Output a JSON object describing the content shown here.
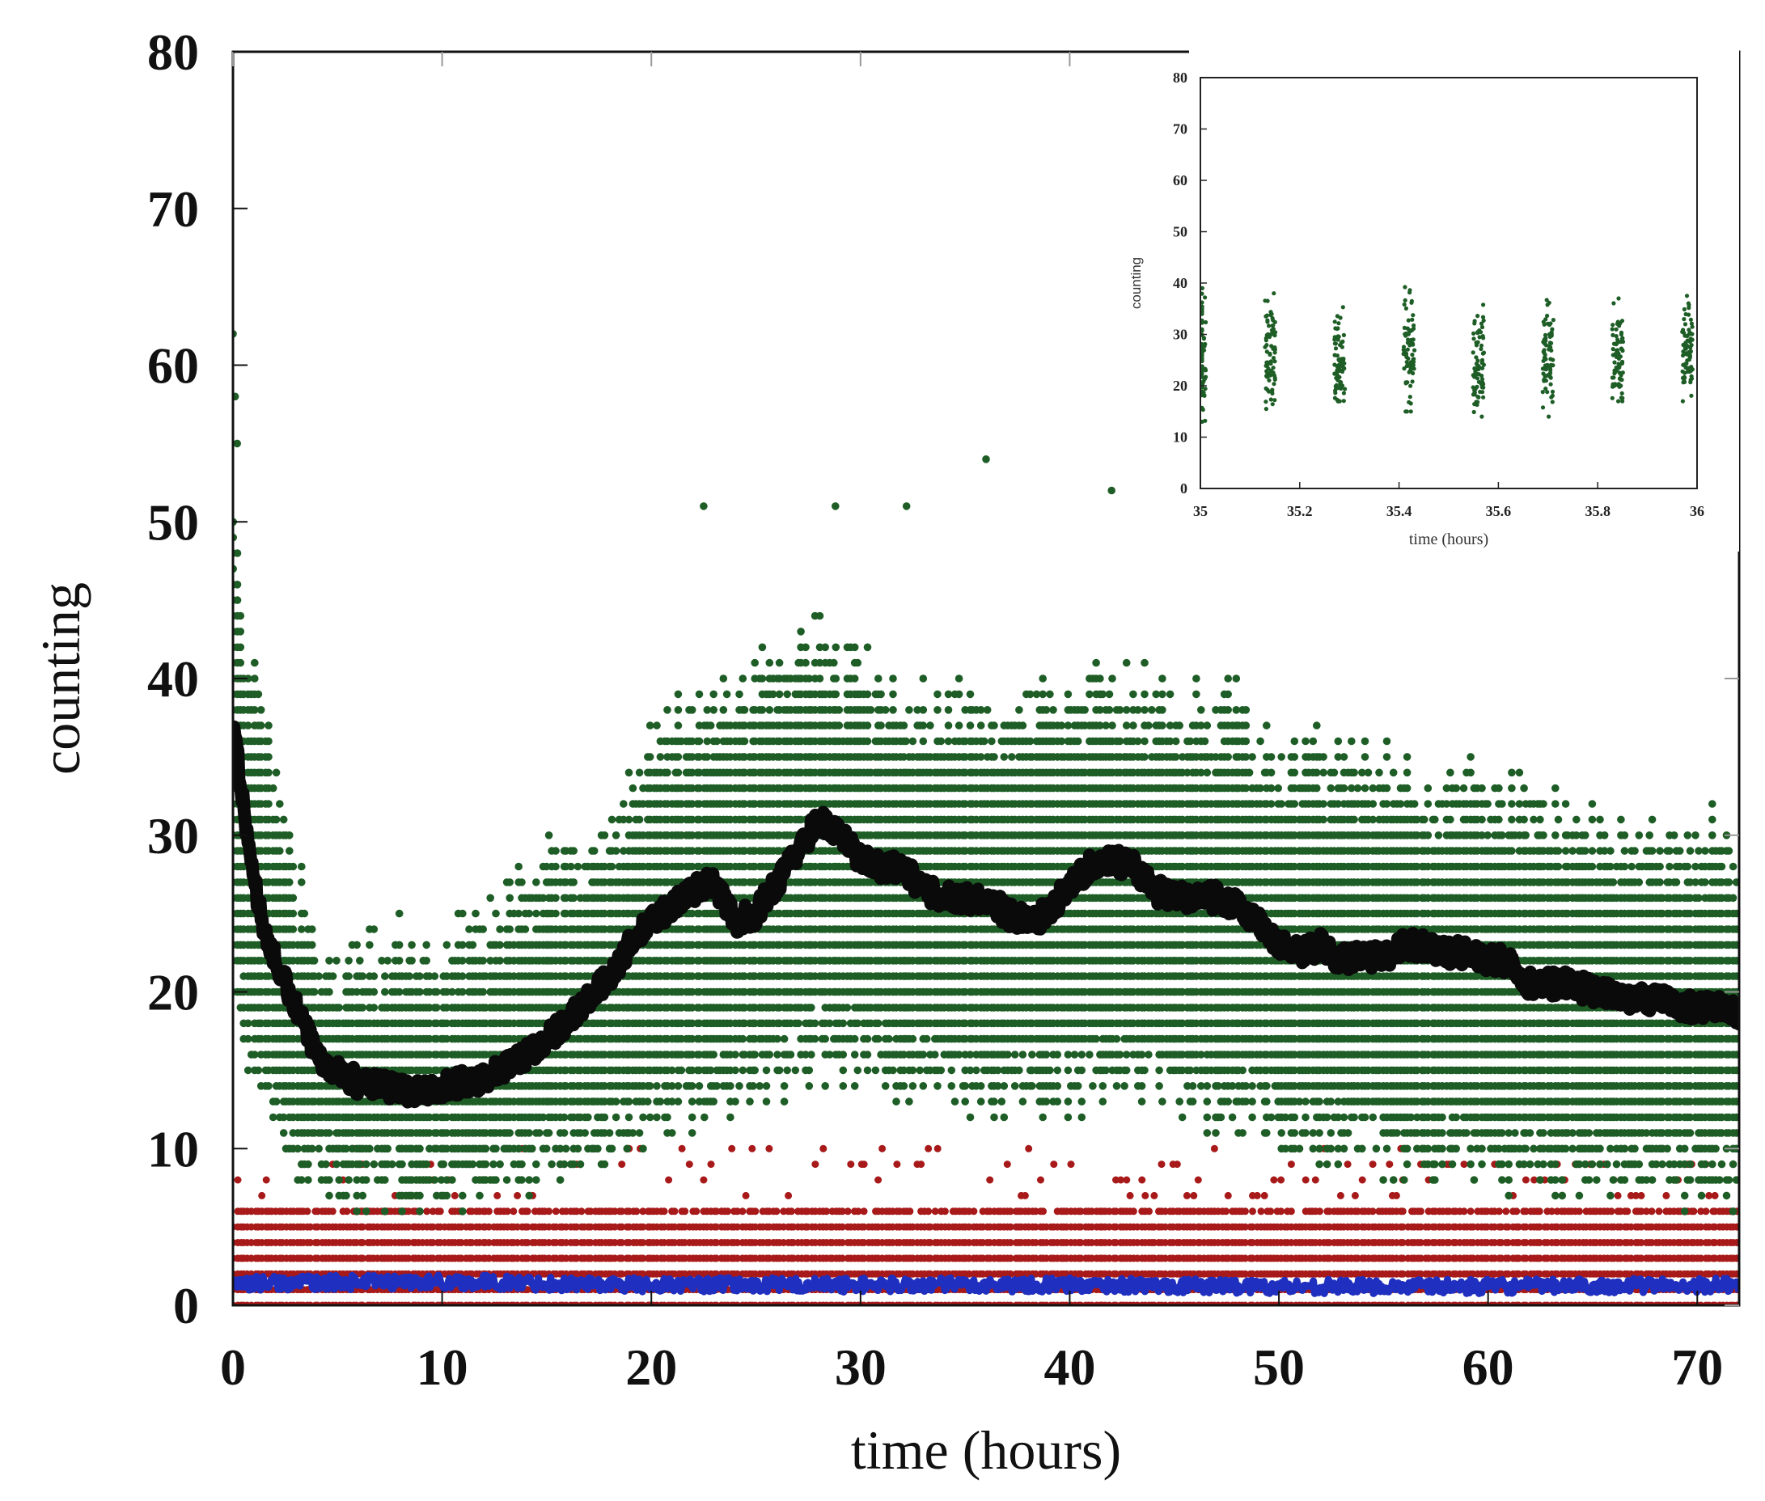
{
  "chart_data": [
    {
      "type": "scatter",
      "role": "main",
      "title": "",
      "xlabel": "time (hours)",
      "ylabel": "counting",
      "xlim": [
        0,
        72
      ],
      "ylim": [
        0,
        80
      ],
      "xticks": [
        0,
        10,
        20,
        30,
        40,
        50,
        60,
        70
      ],
      "yticks": [
        0,
        10,
        20,
        30,
        40,
        50,
        60,
        70,
        80
      ],
      "grid": false,
      "legend": "none",
      "colors": {
        "green": "#1e5e26",
        "red": "#a81a1a",
        "blue": "#1f2fbf",
        "black": "#0a0a0a"
      },
      "series": [
        {
          "name": "green-counts",
          "color": "#1e5e26",
          "kind": "integer-count scatter (dense bands)",
          "envelope_x": [
            0,
            0.5,
            1,
            2,
            3,
            4,
            5,
            6,
            8,
            10,
            12,
            14,
            16,
            18,
            20,
            22,
            24,
            26,
            28,
            30,
            32,
            34,
            36,
            38,
            40,
            42,
            44,
            46,
            48,
            50,
            52,
            54,
            56,
            58,
            60,
            62,
            64,
            66,
            68,
            70,
            72
          ],
          "envelope_low": [
            20,
            18,
            14,
            11,
            9,
            8,
            7,
            7,
            7,
            7,
            7,
            8,
            9,
            10,
            11,
            12,
            13,
            14,
            16,
            15,
            14,
            14,
            13,
            13,
            13,
            14,
            14,
            13,
            12,
            11,
            10,
            10,
            9,
            9,
            9,
            8,
            8,
            8,
            8,
            7,
            7
          ],
          "envelope_high": [
            52,
            45,
            42,
            36,
            30,
            26,
            24,
            24,
            25,
            25,
            26,
            29,
            31,
            33,
            37,
            40,
            41,
            43,
            44,
            42,
            41,
            40,
            40,
            40,
            41,
            42,
            41,
            40,
            40,
            38,
            37,
            37,
            36,
            35,
            35,
            34,
            33,
            33,
            32,
            32,
            31
          ]
        },
        {
          "name": "red-counts",
          "color": "#a81a1a",
          "kind": "integer-count scatter (dense bands)",
          "y_dense_max": 6,
          "y_sparse_max": 10
        },
        {
          "name": "blue-mean",
          "color": "#1f2fbf",
          "kind": "noisy line",
          "x": [
            0,
            10,
            20,
            30,
            40,
            50,
            60,
            72
          ],
          "y": [
            1.4,
            1.5,
            1.3,
            1.3,
            1.3,
            1.2,
            1.2,
            1.3
          ]
        },
        {
          "name": "black-mean",
          "color": "#0a0a0a",
          "kind": "noisy line",
          "x": [
            0,
            0.3,
            0.6,
            1,
            1.5,
            2,
            3,
            4,
            5,
            6,
            7,
            8,
            9,
            10,
            11,
            12,
            13,
            14,
            15,
            16,
            17,
            18,
            19,
            20,
            21,
            22,
            23,
            24,
            25,
            26,
            27,
            28,
            29,
            30,
            31,
            32,
            33,
            34,
            35,
            36,
            37,
            38,
            39,
            40,
            41,
            42,
            43,
            44,
            45,
            46,
            47,
            48,
            49,
            50,
            51,
            52,
            53,
            54,
            55,
            56,
            57,
            58,
            59,
            60,
            61,
            62,
            63,
            64,
            65,
            66,
            67,
            68,
            69,
            70,
            71,
            72
          ],
          "y": [
            37,
            34,
            31,
            27,
            24,
            22,
            19,
            16,
            15,
            14.2,
            14,
            13.8,
            13.6,
            14,
            14.2,
            14.5,
            15.2,
            16,
            17,
            18.2,
            19.5,
            21,
            23,
            24.5,
            25.5,
            26.5,
            27,
            24.5,
            25,
            27,
            29,
            31,
            30,
            28.5,
            28,
            28,
            26.5,
            26,
            26,
            26,
            25,
            24.5,
            25,
            27,
            28,
            28.5,
            28,
            26.5,
            26,
            26,
            26,
            25.5,
            24.5,
            23,
            22.5,
            23,
            22,
            22.5,
            22,
            23,
            23,
            22.5,
            22.5,
            22,
            22,
            20.5,
            20.5,
            20.5,
            20,
            19.8,
            19.5,
            19.5,
            19.2,
            19,
            19,
            18.5
          ]
        }
      ],
      "annotations": []
    },
    {
      "type": "scatter",
      "role": "inset",
      "title": "",
      "xlabel": "time (hours)",
      "ylabel": "counting",
      "xlim": [
        35,
        36
      ],
      "ylim": [
        0,
        80
      ],
      "xticks": [
        35,
        35.2,
        35.4,
        35.6,
        35.8,
        36
      ],
      "xtick_labels": [
        "35",
        "35.2",
        "35.4",
        "35.6",
        "35.8",
        "36"
      ],
      "yticks": [
        0,
        10,
        20,
        30,
        40,
        50,
        60,
        70,
        80
      ],
      "grid": false,
      "legend": "none",
      "series": [
        {
          "name": "green-counts-zoom",
          "color": "#1e5e26",
          "kind": "clustered scatter",
          "cluster_centers_x": [
            35.0,
            35.14,
            35.28,
            35.42,
            35.56,
            35.7,
            35.84,
            35.98
          ],
          "cluster_low_y": [
            13,
            13,
            17,
            15,
            14,
            14,
            17,
            17
          ],
          "cluster_high_y": [
            39,
            38,
            39,
            42,
            38,
            38,
            37,
            38
          ],
          "cluster_center_y": [
            25,
            25,
            25,
            26,
            25,
            25,
            26,
            26
          ]
        }
      ]
    }
  ]
}
